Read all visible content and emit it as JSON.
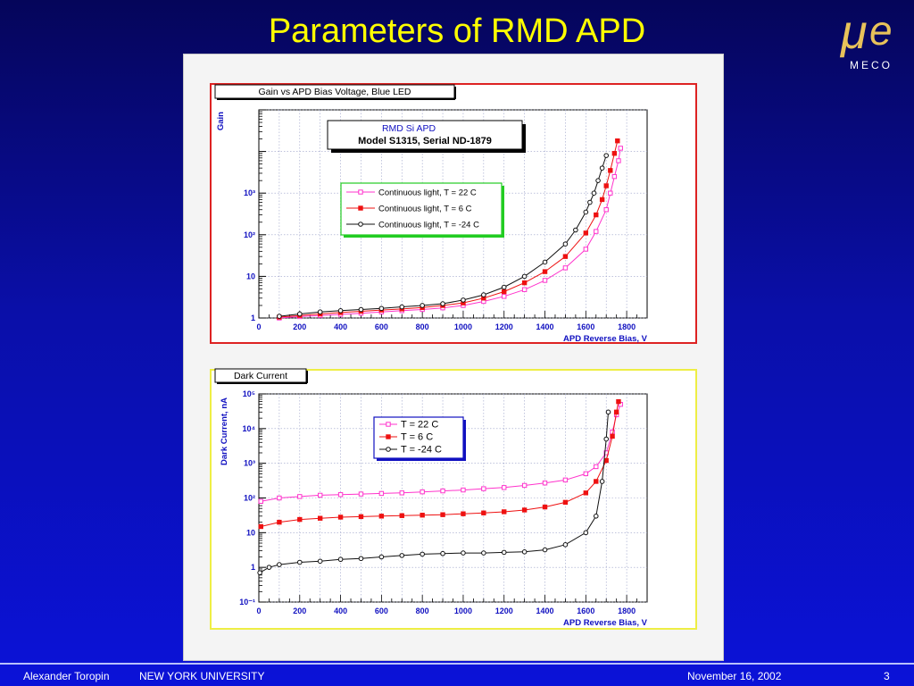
{
  "slide": {
    "title": "Parameters of RMD APD",
    "logo_text": "MECO",
    "footer": {
      "author": "Alexander Toropin",
      "institution": "NEW YORK UNIVERSITY",
      "date": "November 16, 2002",
      "page": "3"
    }
  },
  "chart_data": [
    {
      "type": "line",
      "title": "Gain vs APD Bias Voltage, Blue LED",
      "xlabel": "APD Reverse Bias, V",
      "ylabel": "Gain",
      "xlim": [
        0,
        1900
      ],
      "ylim": [
        1,
        100000
      ],
      "y_scale": "log",
      "grid": true,
      "x_ticks": [
        "0",
        "200",
        "400",
        "600",
        "800",
        "1000",
        "1200",
        "1400",
        "1600",
        "1800"
      ],
      "y_ticks": [
        "1",
        "10",
        "10²",
        "10³"
      ],
      "annotation": {
        "line1": "RMD Si APD",
        "line2": "Model S1315, Serial ND-1879"
      },
      "legend_position": "center-left",
      "series": [
        {
          "name": "Continuous light,  T = 22 C",
          "color": "#ff33cc",
          "marker": "open-square",
          "x": [
            100,
            200,
            300,
            400,
            500,
            600,
            700,
            800,
            900,
            1000,
            1100,
            1200,
            1300,
            1400,
            1500,
            1600,
            1650,
            1700,
            1720,
            1740,
            1760,
            1770
          ],
          "y": [
            1.0,
            1.08,
            1.15,
            1.22,
            1.3,
            1.4,
            1.5,
            1.6,
            1.75,
            2.0,
            2.5,
            3.3,
            4.8,
            8,
            16,
            45,
            120,
            400,
            1000,
            2500,
            6000,
            12000
          ]
        },
        {
          "name": "Continuous light,  T = 6 C",
          "color": "#ee1111",
          "marker": "filled-square",
          "x": [
            100,
            200,
            300,
            400,
            500,
            600,
            700,
            800,
            900,
            1000,
            1100,
            1200,
            1300,
            1400,
            1500,
            1600,
            1650,
            1680,
            1700,
            1720,
            1740,
            1755
          ],
          "y": [
            1.05,
            1.15,
            1.25,
            1.35,
            1.45,
            1.55,
            1.65,
            1.78,
            2.0,
            2.3,
            3.0,
            4.3,
            7,
            13,
            30,
            110,
            300,
            700,
            1500,
            3500,
            9000,
            18000
          ]
        },
        {
          "name": "Continuous light,  T = -24 C",
          "color": "#111111",
          "marker": "open-circle",
          "x": [
            100,
            200,
            300,
            400,
            500,
            600,
            700,
            800,
            900,
            1000,
            1100,
            1200,
            1300,
            1400,
            1500,
            1550,
            1600,
            1620,
            1640,
            1660,
            1680,
            1700
          ],
          "y": [
            1.1,
            1.25,
            1.4,
            1.5,
            1.6,
            1.7,
            1.85,
            2.0,
            2.2,
            2.7,
            3.6,
            5.5,
            10,
            22,
            60,
            130,
            350,
            600,
            1000,
            2000,
            4000,
            8000
          ]
        }
      ]
    },
    {
      "type": "line",
      "title": "Dark Current",
      "xlabel": "APD Reverse Bias, V",
      "ylabel": "Dark Current, nA",
      "xlim": [
        0,
        1900
      ],
      "ylim": [
        0.1,
        100000
      ],
      "y_scale": "log",
      "grid": true,
      "x_ticks": [
        "0",
        "200",
        "400",
        "600",
        "800",
        "1000",
        "1200",
        "1400",
        "1600",
        "1800"
      ],
      "y_ticks": [
        "10⁻¹",
        "1",
        "10",
        "10²",
        "10³",
        "10⁴",
        "10⁵"
      ],
      "legend_position": "top-center",
      "series": [
        {
          "name": "T = 22 C",
          "color": "#ff33cc",
          "marker": "open-square",
          "x": [
            10,
            100,
            200,
            300,
            400,
            500,
            600,
            700,
            800,
            900,
            1000,
            1100,
            1200,
            1300,
            1400,
            1500,
            1600,
            1650,
            1700,
            1730,
            1750,
            1770
          ],
          "y": [
            80,
            100,
            110,
            120,
            125,
            130,
            135,
            140,
            150,
            160,
            170,
            185,
            200,
            230,
            270,
            330,
            500,
            800,
            2000,
            8000,
            25000,
            50000
          ]
        },
        {
          "name": "T = 6 C",
          "color": "#ee1111",
          "marker": "filled-square",
          "x": [
            10,
            100,
            200,
            300,
            400,
            500,
            600,
            700,
            800,
            900,
            1000,
            1100,
            1200,
            1300,
            1400,
            1500,
            1600,
            1650,
            1700,
            1730,
            1750,
            1760
          ],
          "y": [
            15,
            20,
            24,
            26,
            28,
            29,
            30,
            31,
            32,
            33,
            35,
            37,
            40,
            45,
            55,
            75,
            140,
            300,
            1200,
            6000,
            30000,
            60000
          ]
        },
        {
          "name": "T = -24 C",
          "color": "#111111",
          "marker": "open-circle",
          "x": [
            5,
            50,
            100,
            200,
            300,
            400,
            500,
            600,
            700,
            800,
            900,
            1000,
            1100,
            1200,
            1300,
            1400,
            1500,
            1600,
            1650,
            1680,
            1700,
            1710
          ],
          "y": [
            0.7,
            1.0,
            1.2,
            1.4,
            1.5,
            1.7,
            1.8,
            2.0,
            2.2,
            2.4,
            2.5,
            2.6,
            2.6,
            2.7,
            2.8,
            3.2,
            4.5,
            10,
            30,
            300,
            5000,
            30000
          ]
        }
      ]
    }
  ]
}
